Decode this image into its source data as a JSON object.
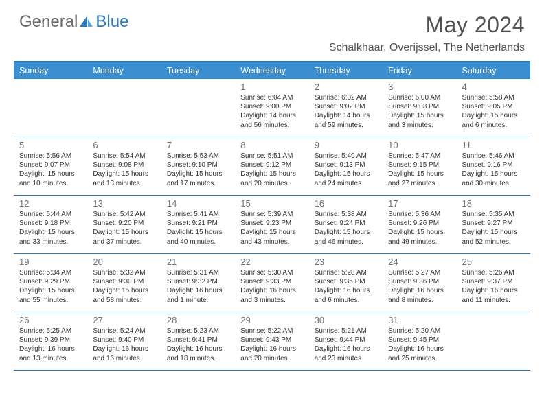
{
  "logo": {
    "text1": "General",
    "text2": "Blue"
  },
  "title": "May 2024",
  "location": "Schalkhaar, Overijssel, The Netherlands",
  "colors": {
    "header_bar": "#3b8fd1",
    "border": "#2a7bbf",
    "logo_gray": "#6b6b6b",
    "logo_blue": "#2a7bbf",
    "title_gray": "#535353",
    "daynum_gray": "#707070",
    "body_text": "#333333",
    "background": "#ffffff"
  },
  "days_of_week": [
    "Sunday",
    "Monday",
    "Tuesday",
    "Wednesday",
    "Thursday",
    "Friday",
    "Saturday"
  ],
  "weeks": [
    [
      {
        "num": "",
        "sunrise": "",
        "sunset": "",
        "daylight": ""
      },
      {
        "num": "",
        "sunrise": "",
        "sunset": "",
        "daylight": ""
      },
      {
        "num": "",
        "sunrise": "",
        "sunset": "",
        "daylight": ""
      },
      {
        "num": "1",
        "sunrise": "Sunrise: 6:04 AM",
        "sunset": "Sunset: 9:00 PM",
        "daylight": "Daylight: 14 hours and 56 minutes."
      },
      {
        "num": "2",
        "sunrise": "Sunrise: 6:02 AM",
        "sunset": "Sunset: 9:02 PM",
        "daylight": "Daylight: 14 hours and 59 minutes."
      },
      {
        "num": "3",
        "sunrise": "Sunrise: 6:00 AM",
        "sunset": "Sunset: 9:03 PM",
        "daylight": "Daylight: 15 hours and 3 minutes."
      },
      {
        "num": "4",
        "sunrise": "Sunrise: 5:58 AM",
        "sunset": "Sunset: 9:05 PM",
        "daylight": "Daylight: 15 hours and 6 minutes."
      }
    ],
    [
      {
        "num": "5",
        "sunrise": "Sunrise: 5:56 AM",
        "sunset": "Sunset: 9:07 PM",
        "daylight": "Daylight: 15 hours and 10 minutes."
      },
      {
        "num": "6",
        "sunrise": "Sunrise: 5:54 AM",
        "sunset": "Sunset: 9:08 PM",
        "daylight": "Daylight: 15 hours and 13 minutes."
      },
      {
        "num": "7",
        "sunrise": "Sunrise: 5:53 AM",
        "sunset": "Sunset: 9:10 PM",
        "daylight": "Daylight: 15 hours and 17 minutes."
      },
      {
        "num": "8",
        "sunrise": "Sunrise: 5:51 AM",
        "sunset": "Sunset: 9:12 PM",
        "daylight": "Daylight: 15 hours and 20 minutes."
      },
      {
        "num": "9",
        "sunrise": "Sunrise: 5:49 AM",
        "sunset": "Sunset: 9:13 PM",
        "daylight": "Daylight: 15 hours and 24 minutes."
      },
      {
        "num": "10",
        "sunrise": "Sunrise: 5:47 AM",
        "sunset": "Sunset: 9:15 PM",
        "daylight": "Daylight: 15 hours and 27 minutes."
      },
      {
        "num": "11",
        "sunrise": "Sunrise: 5:46 AM",
        "sunset": "Sunset: 9:16 PM",
        "daylight": "Daylight: 15 hours and 30 minutes."
      }
    ],
    [
      {
        "num": "12",
        "sunrise": "Sunrise: 5:44 AM",
        "sunset": "Sunset: 9:18 PM",
        "daylight": "Daylight: 15 hours and 33 minutes."
      },
      {
        "num": "13",
        "sunrise": "Sunrise: 5:42 AM",
        "sunset": "Sunset: 9:20 PM",
        "daylight": "Daylight: 15 hours and 37 minutes."
      },
      {
        "num": "14",
        "sunrise": "Sunrise: 5:41 AM",
        "sunset": "Sunset: 9:21 PM",
        "daylight": "Daylight: 15 hours and 40 minutes."
      },
      {
        "num": "15",
        "sunrise": "Sunrise: 5:39 AM",
        "sunset": "Sunset: 9:23 PM",
        "daylight": "Daylight: 15 hours and 43 minutes."
      },
      {
        "num": "16",
        "sunrise": "Sunrise: 5:38 AM",
        "sunset": "Sunset: 9:24 PM",
        "daylight": "Daylight: 15 hours and 46 minutes."
      },
      {
        "num": "17",
        "sunrise": "Sunrise: 5:36 AM",
        "sunset": "Sunset: 9:26 PM",
        "daylight": "Daylight: 15 hours and 49 minutes."
      },
      {
        "num": "18",
        "sunrise": "Sunrise: 5:35 AM",
        "sunset": "Sunset: 9:27 PM",
        "daylight": "Daylight: 15 hours and 52 minutes."
      }
    ],
    [
      {
        "num": "19",
        "sunrise": "Sunrise: 5:34 AM",
        "sunset": "Sunset: 9:29 PM",
        "daylight": "Daylight: 15 hours and 55 minutes."
      },
      {
        "num": "20",
        "sunrise": "Sunrise: 5:32 AM",
        "sunset": "Sunset: 9:30 PM",
        "daylight": "Daylight: 15 hours and 58 minutes."
      },
      {
        "num": "21",
        "sunrise": "Sunrise: 5:31 AM",
        "sunset": "Sunset: 9:32 PM",
        "daylight": "Daylight: 16 hours and 1 minute."
      },
      {
        "num": "22",
        "sunrise": "Sunrise: 5:30 AM",
        "sunset": "Sunset: 9:33 PM",
        "daylight": "Daylight: 16 hours and 3 minutes."
      },
      {
        "num": "23",
        "sunrise": "Sunrise: 5:28 AM",
        "sunset": "Sunset: 9:35 PM",
        "daylight": "Daylight: 16 hours and 6 minutes."
      },
      {
        "num": "24",
        "sunrise": "Sunrise: 5:27 AM",
        "sunset": "Sunset: 9:36 PM",
        "daylight": "Daylight: 16 hours and 8 minutes."
      },
      {
        "num": "25",
        "sunrise": "Sunrise: 5:26 AM",
        "sunset": "Sunset: 9:37 PM",
        "daylight": "Daylight: 16 hours and 11 minutes."
      }
    ],
    [
      {
        "num": "26",
        "sunrise": "Sunrise: 5:25 AM",
        "sunset": "Sunset: 9:39 PM",
        "daylight": "Daylight: 16 hours and 13 minutes."
      },
      {
        "num": "27",
        "sunrise": "Sunrise: 5:24 AM",
        "sunset": "Sunset: 9:40 PM",
        "daylight": "Daylight: 16 hours and 16 minutes."
      },
      {
        "num": "28",
        "sunrise": "Sunrise: 5:23 AM",
        "sunset": "Sunset: 9:41 PM",
        "daylight": "Daylight: 16 hours and 18 minutes."
      },
      {
        "num": "29",
        "sunrise": "Sunrise: 5:22 AM",
        "sunset": "Sunset: 9:43 PM",
        "daylight": "Daylight: 16 hours and 20 minutes."
      },
      {
        "num": "30",
        "sunrise": "Sunrise: 5:21 AM",
        "sunset": "Sunset: 9:44 PM",
        "daylight": "Daylight: 16 hours and 23 minutes."
      },
      {
        "num": "31",
        "sunrise": "Sunrise: 5:20 AM",
        "sunset": "Sunset: 9:45 PM",
        "daylight": "Daylight: 16 hours and 25 minutes."
      },
      {
        "num": "",
        "sunrise": "",
        "sunset": "",
        "daylight": ""
      }
    ]
  ]
}
